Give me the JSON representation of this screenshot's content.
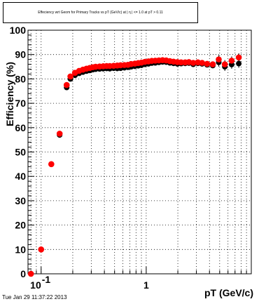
{
  "title": "Effeciency wrt Geom for Primary Tracks vs pT (GeV/c) at | η | <= 1.0 at pT > 0.11",
  "timestamp": "Tue Jan 29 11:37:22 2013",
  "chart_data": {
    "type": "scatter",
    "title": "Effeciency wrt Geom for Primary Tracks vs pT (GeV/c) at | η | <= 1.0 at pT > 0.11",
    "xlabel": "pT (GeV/c)",
    "ylabel": "Efficiency (%)",
    "xscale": "log",
    "xlim": [
      0.075,
      10
    ],
    "ylim": [
      0,
      100
    ],
    "xticks": [
      {
        "value": 0.1,
        "label": "10",
        "exponent": "-1"
      },
      {
        "value": 1,
        "label": "1"
      }
    ],
    "yticks": [
      0,
      10,
      20,
      30,
      40,
      50,
      60,
      70,
      80,
      90,
      100
    ],
    "grid": true,
    "legend": "none",
    "series": [
      {
        "color": "#000000",
        "x": [
          0.08,
          0.1,
          0.125,
          0.15,
          0.175,
          0.19,
          0.21,
          0.23,
          0.25,
          0.27,
          0.29,
          0.31,
          0.33,
          0.36,
          0.39,
          0.42,
          0.45,
          0.49,
          0.53,
          0.57,
          0.62,
          0.67,
          0.72,
          0.78,
          0.84,
          0.9,
          0.97,
          1.05,
          1.13,
          1.22,
          1.32,
          1.43,
          1.55,
          1.68,
          1.82,
          1.98,
          2.15,
          2.35,
          2.55,
          2.8,
          3.1,
          3.4,
          3.8,
          4.3,
          4.9,
          5.6,
          6.5,
          7.6
        ],
        "y": [
          0,
          10,
          45,
          57,
          76.5,
          80,
          81.5,
          82.3,
          82.8,
          83.2,
          83.5,
          83.8,
          84,
          84.1,
          84.2,
          84.3,
          84.2,
          84.4,
          84.3,
          84.4,
          84.6,
          84.8,
          85,
          85.2,
          85.4,
          85.6,
          86,
          86.2,
          86.5,
          86.6,
          86.8,
          87,
          86.9,
          86.6,
          86.4,
          86.2,
          86.3,
          86.4,
          86.5,
          86,
          86.4,
          86.2,
          85.8,
          85.5,
          86.8,
          85,
          85.9,
          86.3
        ]
      },
      {
        "color": "#ff0000",
        "x": [
          0.08,
          0.1,
          0.125,
          0.15,
          0.175,
          0.19,
          0.21,
          0.23,
          0.25,
          0.27,
          0.29,
          0.31,
          0.33,
          0.36,
          0.39,
          0.42,
          0.45,
          0.49,
          0.53,
          0.57,
          0.62,
          0.67,
          0.72,
          0.78,
          0.84,
          0.9,
          0.97,
          1.05,
          1.13,
          1.22,
          1.32,
          1.43,
          1.55,
          1.68,
          1.82,
          1.98,
          2.15,
          2.35,
          2.55,
          2.8,
          3.1,
          3.4,
          3.8,
          4.3,
          4.9,
          5.6,
          6.5,
          7.6
        ],
        "y": [
          0,
          10,
          45,
          57.5,
          77.5,
          81,
          82.5,
          83.3,
          83.8,
          84.2,
          84.5,
          84.8,
          85,
          85.1,
          85.2,
          85.3,
          85.3,
          85.4,
          85.5,
          85.6,
          85.7,
          85.8,
          86.1,
          86.3,
          86.5,
          86.7,
          87,
          87.2,
          87.4,
          87.5,
          87.6,
          87.7,
          87.6,
          87.3,
          87.1,
          86.9,
          86.8,
          86.8,
          86.9,
          86.6,
          86.8,
          86.6,
          86.2,
          86,
          88,
          86,
          87.5,
          88.8
        ]
      }
    ]
  }
}
